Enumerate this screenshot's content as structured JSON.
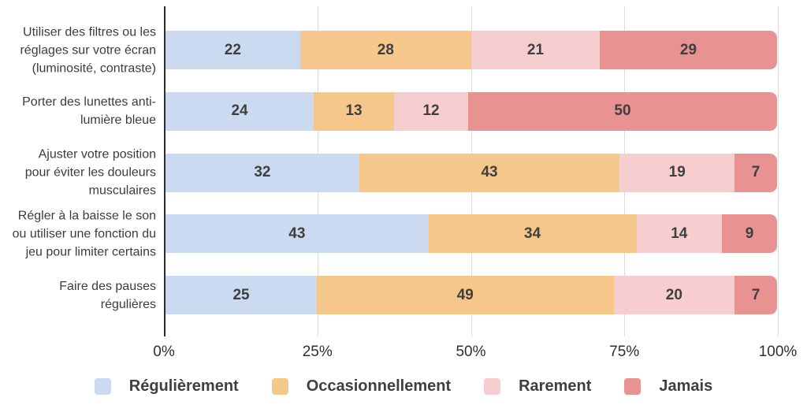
{
  "chart_data": {
    "type": "bar",
    "orientation": "horizontal",
    "stacked": true,
    "title": "",
    "xlabel": "",
    "ylabel": "",
    "xlim": [
      0,
      100
    ],
    "grid": true,
    "legend_position": "bottom",
    "value_labels": "inside",
    "categories": [
      {
        "lines": [
          "Utiliser des filtres ou les",
          "réglages sur votre écran",
          "(luminosité, contraste)"
        ]
      },
      {
        "lines": [
          "Porter des lunettes anti-",
          "lumière bleue"
        ]
      },
      {
        "lines": [
          "Ajuster votre position",
          "pour éviter les douleurs",
          "musculaires"
        ]
      },
      {
        "lines": [
          "Régler à la baisse le son",
          "ou utiliser une fonction du",
          "jeu pour limiter certains"
        ]
      },
      {
        "lines": [
          "Faire des pauses",
          "régulières"
        ]
      }
    ],
    "series": [
      {
        "name": "Régulièrement",
        "color": "#CBD9F1",
        "values": [
          22,
          24,
          32,
          43,
          25
        ]
      },
      {
        "name": "Occasionnellement",
        "color": "#F6C78A",
        "values": [
          28,
          13,
          43,
          34,
          49
        ]
      },
      {
        "name": "Rarement",
        "color": "#F6CECF",
        "values": [
          21,
          12,
          19,
          14,
          20
        ]
      },
      {
        "name": "Jamais",
        "color": "#E89292",
        "values": [
          29,
          50,
          7,
          9,
          7
        ]
      }
    ],
    "x_ticks": [
      {
        "label": "0%",
        "value": 0
      },
      {
        "label": "25%",
        "value": 25
      },
      {
        "label": "50%",
        "value": 50
      },
      {
        "label": "75%",
        "value": 75
      },
      {
        "label": "100%",
        "value": 100
      }
    ]
  },
  "style": {
    "background": "#FFFFFF",
    "axis_color": "#2D2D2D",
    "grid_color": "#DCDCDC",
    "category_label_color": "#3C3C3C",
    "value_label_color": "#3F3F3F",
    "tick_label_color": "#2F2F2F",
    "legend_label_color": "#3D4043"
  }
}
